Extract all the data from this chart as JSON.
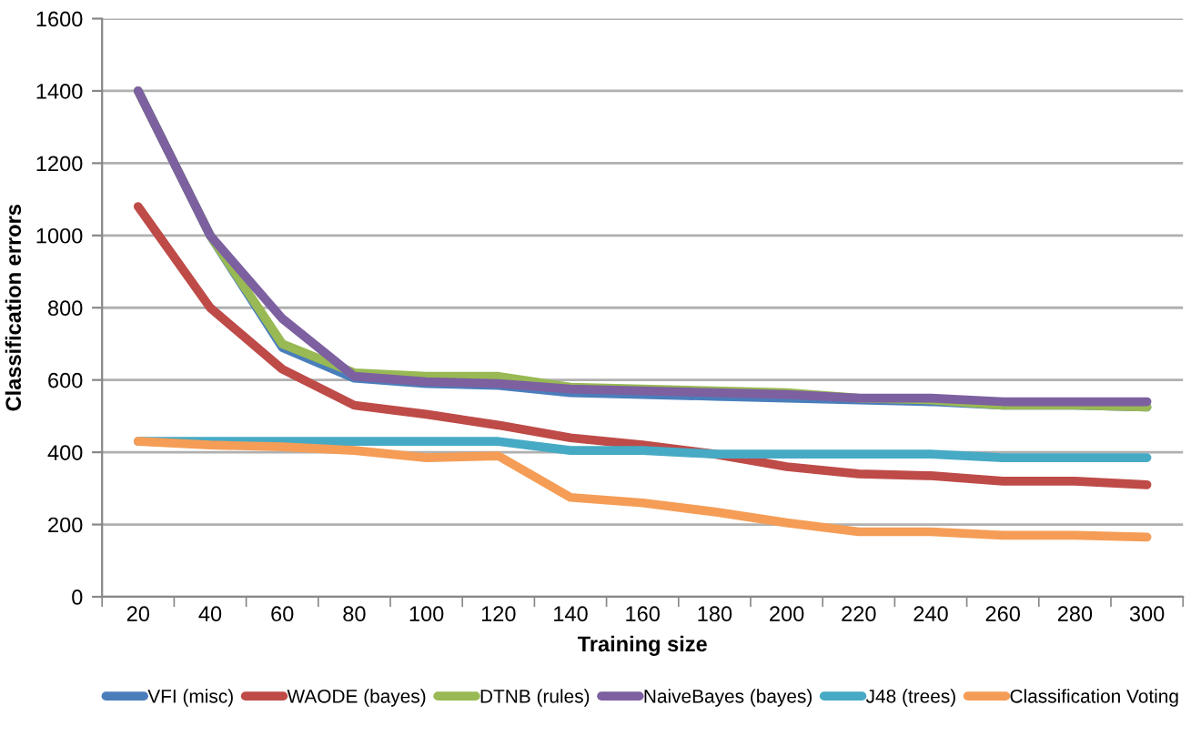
{
  "chart_data": {
    "type": "line",
    "xlabel": "Training size",
    "ylabel": "Classification errors",
    "categories": [
      "20",
      "40",
      "60",
      "80",
      "100",
      "120",
      "140",
      "160",
      "180",
      "200",
      "220",
      "240",
      "260",
      "280",
      "300"
    ],
    "ylim": [
      0,
      1600
    ],
    "yticks": [
      0,
      200,
      400,
      600,
      800,
      1000,
      1200,
      1400,
      1600
    ],
    "grid": "y",
    "legend": "bottom",
    "marker": "none",
    "line_style": "solid",
    "series": [
      {
        "name": "VFI (misc)",
        "color": "#4a7ebb",
        "values": [
          1400,
          1000,
          690,
          605,
          590,
          585,
          565,
          560,
          555,
          550,
          545,
          540,
          530,
          530,
          525
        ]
      },
      {
        "name": "WAODE (bayes)",
        "color": "#be4b48",
        "values": [
          1080,
          800,
          630,
          530,
          505,
          475,
          440,
          420,
          395,
          360,
          340,
          335,
          320,
          320,
          310
        ]
      },
      {
        "name": "DTNB (rules)",
        "color": "#98b954",
        "values": [
          1400,
          1000,
          700,
          620,
          610,
          610,
          580,
          575,
          570,
          565,
          550,
          545,
          530,
          530,
          525
        ]
      },
      {
        "name": "NaiveBayes (bayes)",
        "color": "#7d60a0",
        "values": [
          1400,
          1000,
          770,
          610,
          595,
          590,
          575,
          570,
          565,
          560,
          550,
          550,
          540,
          540,
          540
        ]
      },
      {
        "name": "J48 (trees)",
        "color": "#46aac5",
        "values": [
          430,
          430,
          430,
          430,
          430,
          430,
          405,
          405,
          395,
          395,
          395,
          395,
          385,
          385,
          385
        ]
      },
      {
        "name": "Classification Voting",
        "color": "#f59d56",
        "values": [
          430,
          420,
          415,
          405,
          385,
          390,
          275,
          260,
          235,
          205,
          180,
          180,
          170,
          170,
          165
        ]
      }
    ]
  }
}
